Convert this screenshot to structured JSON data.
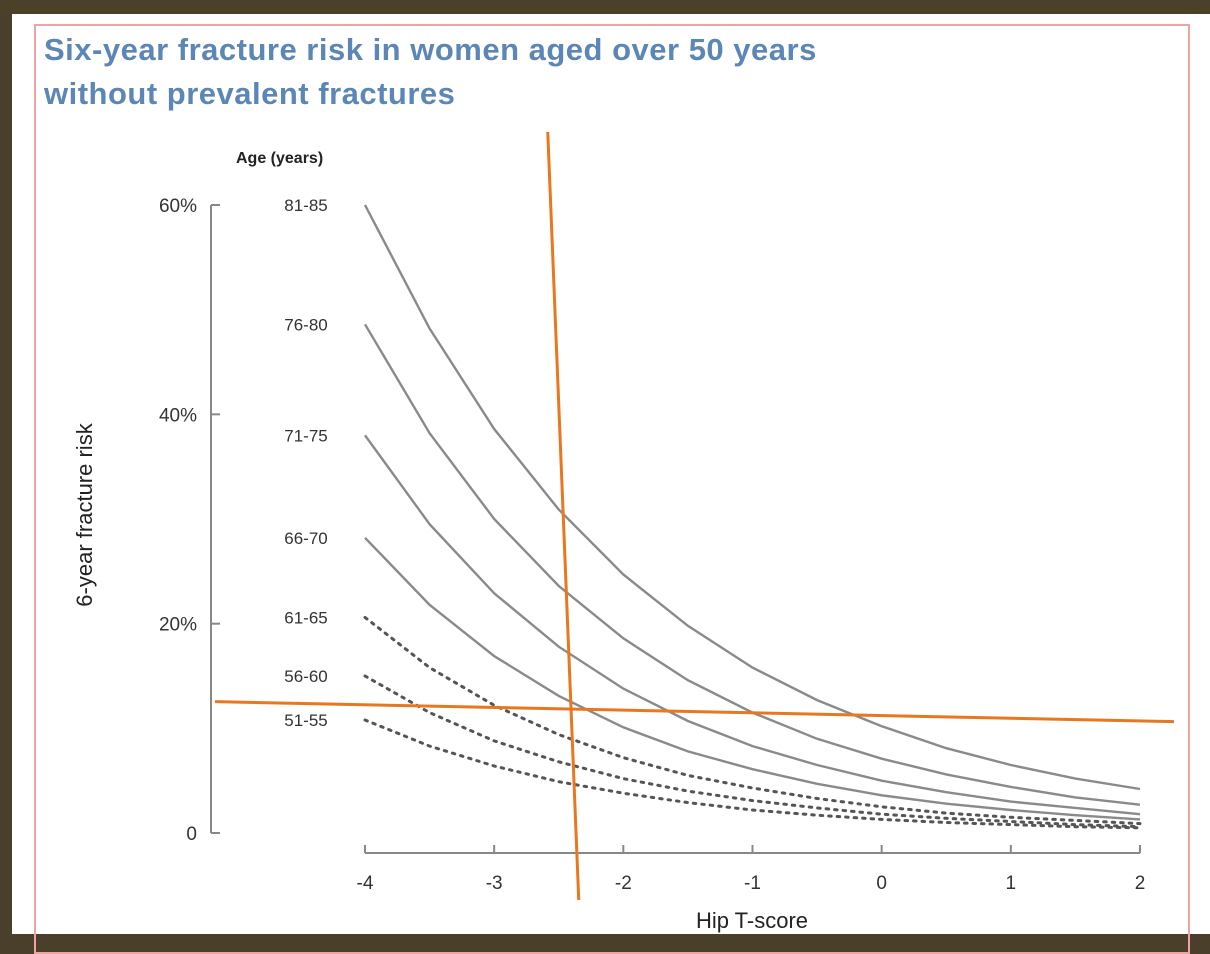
{
  "title_line1": "Six-year fracture risk in women aged over 50 years",
  "title_line2": "without prevalent fractures",
  "colors": {
    "title": "#5b86b5",
    "frame": "#f0a3a3",
    "curve": "#8a8a8a",
    "overlay": "#e8771f",
    "background_dark": "#4b4128"
  },
  "chart_data": {
    "type": "line",
    "xlabel": "Hip T-score",
    "ylabel": "6-year fracture risk",
    "legend_title": "Age (years)",
    "xlim": [
      -4,
      2
    ],
    "ylim": [
      0,
      60
    ],
    "x_ticks": [
      -4,
      -3,
      -2,
      -1,
      0,
      1,
      2
    ],
    "x_tick_labels": [
      "-4",
      "-3",
      "-2",
      "-1",
      "0",
      "1",
      "2"
    ],
    "y_ticks": [
      0,
      20,
      40,
      60
    ],
    "y_tick_labels": [
      "0",
      "20%",
      "40%",
      "60%"
    ],
    "x": [
      -4,
      -3.5,
      -3,
      -2.5,
      -2,
      -1.5,
      -1,
      -0.5,
      0,
      0.5,
      1,
      1.5,
      2
    ],
    "series": [
      {
        "name": "81-85",
        "style": "solid",
        "values": [
          60.0,
          48.2,
          38.6,
          30.9,
          24.7,
          19.8,
          15.8,
          12.7,
          10.2,
          8.1,
          6.5,
          5.2,
          4.2
        ]
      },
      {
        "name": "76-80",
        "style": "solid",
        "values": [
          48.6,
          38.2,
          30.0,
          23.6,
          18.6,
          14.6,
          11.5,
          9.0,
          7.1,
          5.6,
          4.4,
          3.4,
          2.7
        ]
      },
      {
        "name": "71-75",
        "style": "solid",
        "values": [
          38.0,
          29.5,
          22.9,
          17.8,
          13.8,
          10.7,
          8.3,
          6.5,
          5.0,
          3.9,
          3.0,
          2.4,
          1.8
        ]
      },
      {
        "name": "66-70",
        "style": "solid",
        "values": [
          28.2,
          21.8,
          16.9,
          13.1,
          10.1,
          7.8,
          6.1,
          4.7,
          3.6,
          2.8,
          2.2,
          1.7,
          1.3
        ]
      },
      {
        "name": "61-65",
        "style": "dotted",
        "values": [
          20.6,
          15.8,
          12.2,
          9.4,
          7.2,
          5.5,
          4.3,
          3.3,
          2.5,
          1.9,
          1.5,
          1.2,
          0.9
        ]
      },
      {
        "name": "56-60",
        "style": "dotted",
        "values": [
          15.0,
          11.5,
          8.8,
          6.8,
          5.2,
          4.0,
          3.1,
          2.4,
          1.8,
          1.4,
          1.1,
          0.8,
          0.6
        ]
      },
      {
        "name": "51-55",
        "style": "dotted",
        "values": [
          10.8,
          8.3,
          6.4,
          4.9,
          3.8,
          2.9,
          2.2,
          1.7,
          1.3,
          1.0,
          0.8,
          0.6,
          0.5
        ]
      }
    ],
    "overlay_lines": [
      {
        "orientation": "vertical",
        "x": -2.5
      },
      {
        "orientation": "horizontal",
        "y": 11.5
      }
    ],
    "grid": false
  }
}
